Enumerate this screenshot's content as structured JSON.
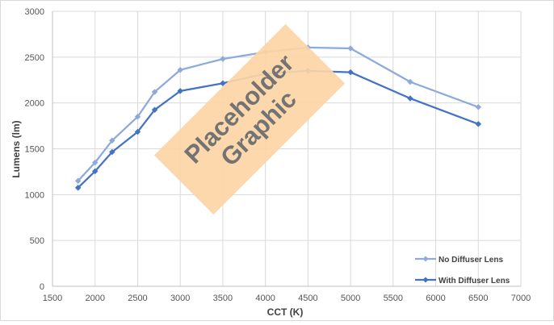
{
  "chart_data": {
    "type": "line",
    "xlabel": "CCT (K)",
    "ylabel": "Lumens (lm)",
    "xlim": [
      1500,
      7000
    ],
    "ylim": [
      0,
      3000
    ],
    "x_ticks": [
      1500,
      2000,
      2500,
      3000,
      3500,
      4000,
      4500,
      5000,
      5500,
      6000,
      6500,
      7000
    ],
    "y_ticks": [
      0,
      500,
      1000,
      1500,
      2000,
      2500,
      3000
    ],
    "grid": "vertical and horizontal",
    "legend_placement": "bottom-right",
    "series": [
      {
        "name": "No Diffuser Lens",
        "color": "#8eaadb",
        "marker": "diamond",
        "x": [
          1800,
          2000,
          2200,
          2500,
          2700,
          3000,
          3500,
          4000,
          4500,
          5000,
          5700,
          6500
        ],
        "y": [
          1150,
          1350,
          1590,
          1850,
          2120,
          2360,
          2480,
          2555,
          2605,
          2595,
          2230,
          1955
        ]
      },
      {
        "name": "With Diffuser Lens",
        "color": "#4472c4",
        "marker": "diamond",
        "x": [
          1800,
          2000,
          2200,
          2500,
          2700,
          3000,
          3500,
          4000,
          4500,
          5000,
          5700,
          6500
        ],
        "y": [
          1075,
          1255,
          1465,
          1685,
          1925,
          2130,
          2215,
          2320,
          2350,
          2335,
          2050,
          1770
        ]
      }
    ]
  },
  "overlay": {
    "line1": "Placeholder",
    "line2": "Graphic",
    "color": "#fcd5a5"
  }
}
